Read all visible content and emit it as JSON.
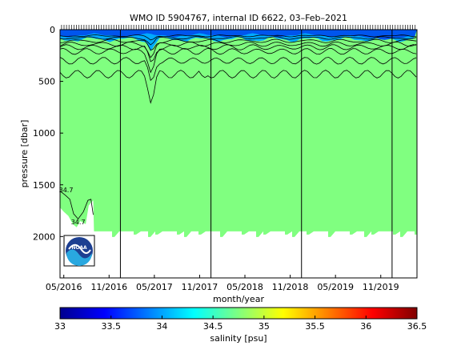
{
  "chart_data": [
    {
      "type": "heatmap",
      "title": "WMO ID 5904767, internal ID 6622, 03–Feb–2021",
      "xlabel": "month/year",
      "ylabel": "pressure [dbar]",
      "x_ticklabels": [
        "05/2016",
        "11/2016",
        "05/2017",
        "11/2017",
        "05/2018",
        "11/2018",
        "05/2019",
        "11/2019"
      ],
      "x_tick_months": [
        0,
        6,
        12,
        18,
        24,
        30,
        36,
        42
      ],
      "x_range_months": [
        -0.5,
        46.8
      ],
      "year_boundary_months": [
        7.5,
        19.5,
        31.5,
        43.5
      ],
      "y_ticklabels": [
        "0",
        "500",
        "1000",
        "1500",
        "2000"
      ],
      "y_ticks": [
        0,
        500,
        1000,
        1500,
        2000
      ],
      "ylim": [
        2400,
        0
      ],
      "y_reversed": true,
      "profile_max_pressure": 1950,
      "contour_labels": [
        {
          "text": "34.7",
          "month": 0.3,
          "pressure": 1570
        },
        {
          "text": "34.7",
          "month": 1.9,
          "pressure": 1880
        }
      ],
      "colors": {
        "deep_water": "#80ff80",
        "upper_water": "#00aaff",
        "surface_water": "#0055ee",
        "no_data": "#ffffff",
        "contour": "#000000"
      }
    },
    {
      "type": "colorbar",
      "xlabel": "salinity [psu]",
      "range": [
        33,
        36.5
      ],
      "ticks": [
        "33",
        "33.5",
        "34",
        "34.5",
        "35",
        "35.5",
        "36",
        "36.5"
      ],
      "colormap": "jet"
    }
  ],
  "logo": {
    "text": "NOAA"
  }
}
